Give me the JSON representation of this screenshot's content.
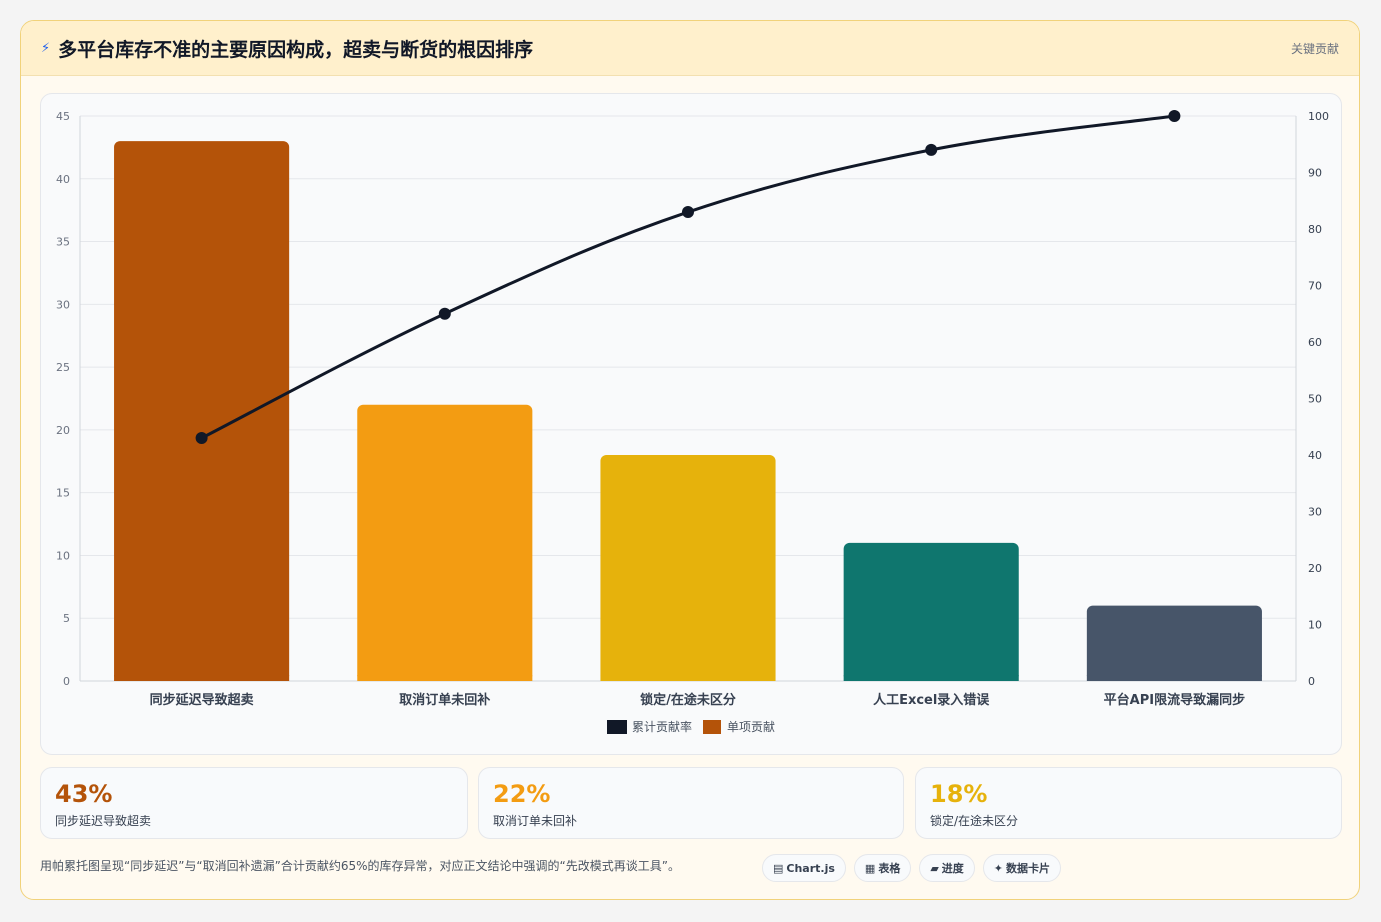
{
  "header": {
    "title": "多平台库存不准的主要原因构成，超卖与断货的根因排序",
    "key_label": "关键贡献"
  },
  "chart_data": {
    "type": "bar",
    "categories": [
      "同步延迟导致超卖",
      "取消订单未回补",
      "锁定/在途未区分",
      "人工Excel录入错误",
      "平台API限流导致漏同步"
    ],
    "series": [
      {
        "name": "单项贡献",
        "type": "bar",
        "values": [
          43,
          22,
          18,
          11,
          6
        ],
        "colors": [
          "#b45309",
          "#f39c12",
          "#e6b20c",
          "#0f766e",
          "#475569"
        ]
      },
      {
        "name": "累计贡献率",
        "type": "line",
        "values": [
          43,
          65,
          83,
          94,
          100
        ],
        "color": "#111827"
      }
    ],
    "y_left": {
      "min": 0,
      "max": 45,
      "ticks": [
        "0",
        "5",
        "10",
        "15",
        "20",
        "25",
        "30",
        "35",
        "40",
        "45"
      ]
    },
    "y_right": {
      "min": 0,
      "max": 100,
      "ticks": [
        "0",
        "10",
        "20",
        "30",
        "40",
        "50",
        "60",
        "70",
        "80",
        "90",
        "100"
      ]
    },
    "legend_position": "bottom",
    "grid": true
  },
  "kpis": [
    {
      "value": "43%",
      "label": "同步延迟导致超卖",
      "color": "#b45309"
    },
    {
      "value": "22%",
      "label": "取消订单未回补",
      "color": "#f39c12"
    },
    {
      "value": "18%",
      "label": "锁定/在途未区分",
      "color": "#e6b20c"
    }
  ],
  "footer": {
    "note": "用帕累托图呈现“同步延迟”与“取消回补遗漏”合计贡献约65%的库存异常，对应正文结论中强调的“先改模式再谈工具”。",
    "tags": [
      {
        "icon": "chart-icon",
        "glyph": "▤",
        "label": "Chart.js"
      },
      {
        "icon": "table-icon",
        "glyph": "▦",
        "label": "表格"
      },
      {
        "icon": "progress-icon",
        "glyph": "▰",
        "label": "进度"
      },
      {
        "icon": "sparkle-icon",
        "glyph": "✦",
        "label": "数据卡片"
      }
    ]
  }
}
